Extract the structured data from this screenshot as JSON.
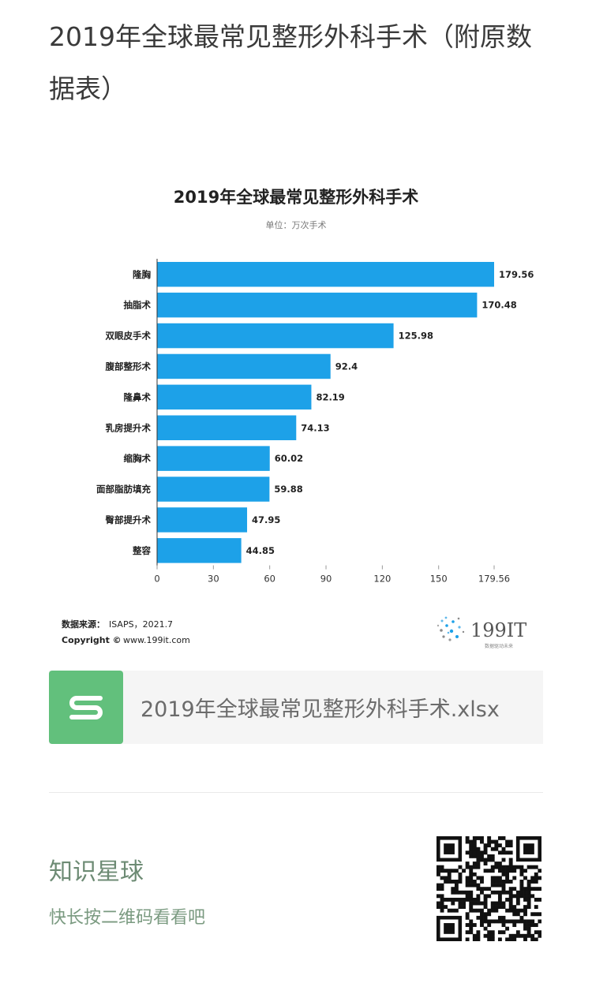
{
  "page": {
    "title": "2019年全球最常见整形外科手术（附原数据表）"
  },
  "chart_data": {
    "type": "bar",
    "orientation": "horizontal",
    "title": "2019年全球最常见整形外科手术",
    "subtitle": "单位：万次手术",
    "categories": [
      "隆胸",
      "抽脂术",
      "双眼皮手术",
      "腹部整形术",
      "隆鼻术",
      "乳房提升术",
      "缩胸术",
      "面部脂肪填充",
      "臀部提升术",
      "整容"
    ],
    "values": [
      179.56,
      170.48,
      125.98,
      92.4,
      82.19,
      74.13,
      60.02,
      59.88,
      47.95,
      44.85
    ],
    "value_labels": [
      "179.56",
      "170.48",
      "125.98",
      "92.4",
      "82.19",
      "74.13",
      "60.02",
      "59.88",
      "47.95",
      "44.85"
    ],
    "xticks": [
      "0",
      "30",
      "60",
      "90",
      "120",
      "150",
      "179.56"
    ],
    "xtick_values": [
      0,
      30,
      60,
      90,
      120,
      150,
      179.56
    ],
    "xlim": [
      0,
      179.56
    ],
    "bar_color": "#1da1e8",
    "grid": false,
    "source_label": "数据来源：",
    "source_value": "ISAPS，2021.7",
    "copyright_label": "Copyright ©",
    "copyright_value": "www.199it.com",
    "brand_logo": "199IT",
    "brand_tagline": "数据驱动未来"
  },
  "file_card": {
    "icon": "spreadsheet-s-icon",
    "icon_color": "#62c07c",
    "file_name": "2019年全球最常见整形外科手术.xlsx"
  },
  "planet": {
    "name": "知识星球",
    "hint": "快长按二维码看看吧",
    "qr_icon": "qr-code-icon"
  }
}
